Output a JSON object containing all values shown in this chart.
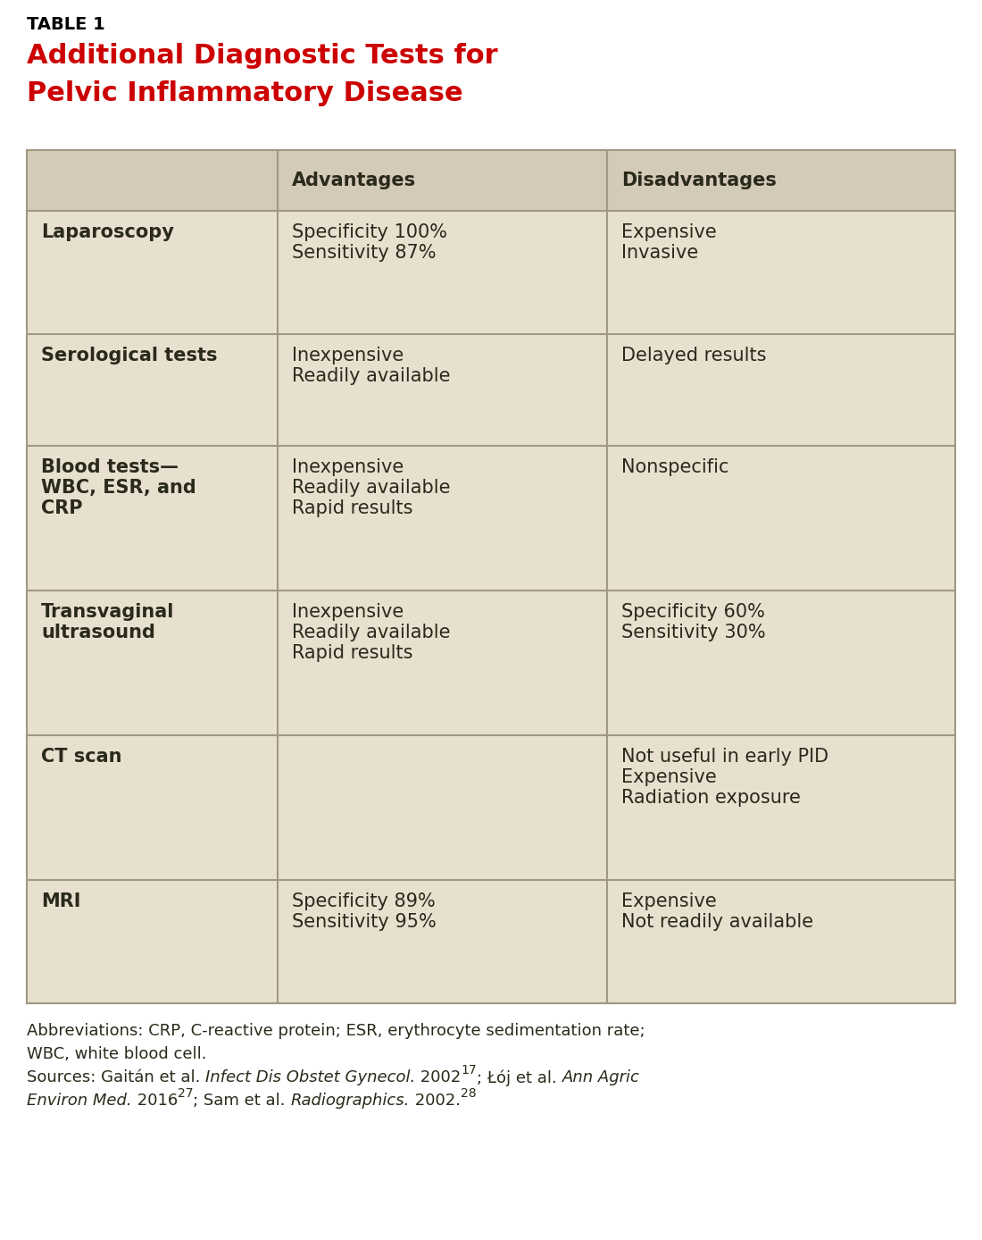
{
  "table_label": "TABLE 1",
  "title_line1": "Additional Diagnostic Tests for",
  "title_line2": "Pelvic Inflammatory Disease",
  "title_color": "#cc0000",
  "table_label_color": "#000000",
  "bg_color": "#ffffff",
  "cell_bg_color": "#e8e0cf",
  "header_bg_color": "#d4cab8",
  "col_headers": [
    "",
    "Advantages",
    "Disadvantages"
  ],
  "rows": [
    {
      "test": "Laparoscopy",
      "advantages": "Specificity 100%\nSensitivity 87%",
      "disadvantages": "Expensive\nInvasive"
    },
    {
      "test": "Serological tests",
      "advantages": "Inexpensive\nReadily available",
      "disadvantages": "Delayed results"
    },
    {
      "test": "Blood tests—\nWBC, ESR, and\nCRP",
      "advantages": "Inexpensive\nReadily available\nRapid results",
      "disadvantages": "Nonspecific"
    },
    {
      "test": "Transvaginal\nultrasound",
      "advantages": "Inexpensive\nReadily available\nRapid results",
      "disadvantages": "Specificity 60%\nSensitivity 30%"
    },
    {
      "test": "CT scan",
      "advantages": "",
      "disadvantages": "Not useful in early PID\nExpensive\nRadiation exposure"
    },
    {
      "test": "MRI",
      "advantages": "Specificity 89%\nSensitivity 95%",
      "disadvantages": "Expensive\nNot readily available"
    }
  ],
  "footnote1": "Abbreviations: CRP, C-reactive protein; ESR, erythrocyte sedimentation rate;",
  "footnote2": "WBC, white blood cell.",
  "footnote3_parts": [
    {
      "text": "Sources: Gaitán et al. ",
      "style": "normal",
      "super": false
    },
    {
      "text": "Infect Dis Obstet Gynecol.",
      "style": "italic",
      "super": false
    },
    {
      "text": " 2002",
      "style": "normal",
      "super": false
    },
    {
      "text": "17",
      "style": "normal",
      "super": true
    },
    {
      "text": "; Łój et al. ",
      "style": "normal",
      "super": false
    },
    {
      "text": "Ann Agric",
      "style": "italic",
      "super": false
    }
  ],
  "footnote4_parts": [
    {
      "text": "Environ Med.",
      "style": "italic",
      "super": false
    },
    {
      "text": " 2016",
      "style": "normal",
      "super": false
    },
    {
      "text": "27",
      "style": "normal",
      "super": true
    },
    {
      "text": "; Sam et al. ",
      "style": "normal",
      "super": false
    },
    {
      "text": "Radiographics.",
      "style": "italic",
      "super": false
    },
    {
      "text": " 2002.",
      "style": "normal",
      "super": false
    },
    {
      "text": "28",
      "style": "normal",
      "super": true
    }
  ],
  "line_color": "#a09880",
  "text_color": "#2a2a1a",
  "font_size_body": 15,
  "font_size_header": 15,
  "font_size_title": 22,
  "font_size_label": 14,
  "font_size_footnote": 13
}
